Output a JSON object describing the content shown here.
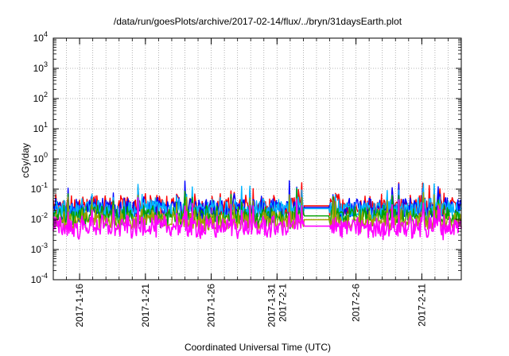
{
  "chart_data": {
    "type": "line",
    "title": "/data/run/goesPlots/archive/2017-02-14/flux/../bryn/31daysEarth.plot",
    "xlabel": "Coordinated Universal Time (UTC)",
    "ylabel": "cGy/day",
    "y_scale": "log",
    "ylim": [
      0.0001,
      10000
    ],
    "xlim": [
      "2017-01-14",
      "2017-02-14"
    ],
    "grid": true,
    "legend": "none",
    "y_ticks": [
      {
        "base": "10",
        "exp": "-4"
      },
      {
        "base": "10",
        "exp": "-3"
      },
      {
        "base": "10",
        "exp": "-2"
      },
      {
        "base": "10",
        "exp": "-1"
      },
      {
        "base": "10",
        "exp": "0"
      },
      {
        "base": "10",
        "exp": "1"
      },
      {
        "base": "10",
        "exp": "2"
      },
      {
        "base": "10",
        "exp": "3"
      },
      {
        "base": "10",
        "exp": "4"
      }
    ],
    "x_ticks": [
      {
        "date": "2017-01-16",
        "lines": [
          "2017-1-16"
        ]
      },
      {
        "date": "2017-01-21",
        "lines": [
          "2017-1-21"
        ]
      },
      {
        "date": "2017-01-26",
        "lines": [
          "2017-1-26"
        ]
      },
      {
        "date": "2017-01-31",
        "lines": [
          "2017-1-31",
          "2017-2-1"
        ]
      },
      {
        "date": "2017-02-06",
        "lines": [
          "2017-2-6"
        ]
      },
      {
        "date": "2017-02-11",
        "lines": [
          "2017-2-11"
        ]
      }
    ],
    "data_gap": [
      "2017-02-02",
      "2017-02-04"
    ],
    "series": [
      {
        "color": "#ff0000",
        "base": 0.026,
        "spread": 0.34
      },
      {
        "color": "#0000ff",
        "base": 0.023,
        "spread": 0.32
      },
      {
        "color": "#00b4ff",
        "base": 0.021,
        "spread": 0.3
      },
      {
        "color": "#00a000",
        "base": 0.012,
        "spread": 0.3
      },
      {
        "color": "#a0a000",
        "base": 0.009,
        "spread": 0.28
      },
      {
        "color": "#ff00ff",
        "base": 0.0055,
        "spread": 0.3
      }
    ]
  }
}
